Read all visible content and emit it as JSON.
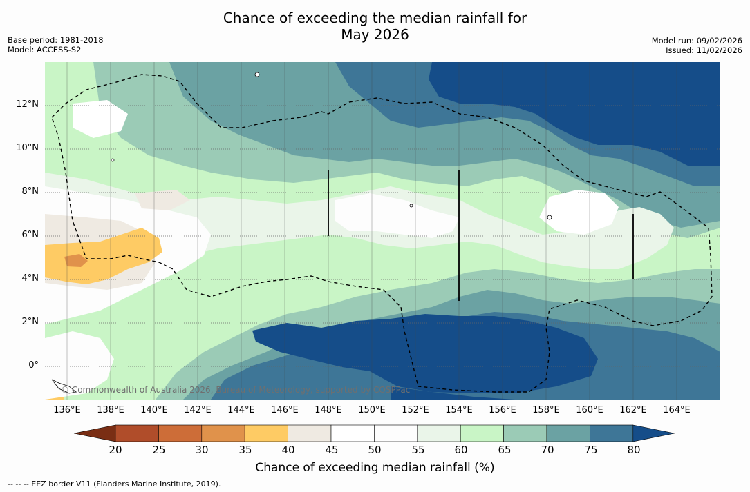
{
  "title": {
    "line1": "Chance of exceeding the median rainfall for",
    "line2": "May 2026"
  },
  "meta": {
    "base_period": "Base period: 1981-2018",
    "model": "Model: ACCESS-S2",
    "model_run": "Model run: 09/02/2026",
    "issued": "Issued: 11/02/2026"
  },
  "map": {
    "lat_labels": [
      "12°N",
      "10°N",
      "8°N",
      "6°N",
      "4°N",
      "2°N",
      "0°"
    ],
    "lon_labels": [
      "136°E",
      "138°E",
      "140°E",
      "142°E",
      "144°E",
      "146°E",
      "148°E",
      "150°E",
      "152°E",
      "154°E",
      "156°E",
      "158°E",
      "160°E",
      "162°E",
      "164°E"
    ],
    "copyright": "© Commonwealth of Australia 2026, Bureau of Meteorology, supported by COSPPac"
  },
  "colorbar": {
    "ticks": [
      "20",
      "25",
      "30",
      "35",
      "40",
      "45",
      "50",
      "55",
      "60",
      "65",
      "70",
      "75",
      "80"
    ],
    "colors": [
      "#7a2e14",
      "#b04d2a",
      "#cd6d38",
      "#e0924b",
      "#fecb64",
      "#efeae2",
      "#ffffff",
      "#fdfdfd",
      "#eaf5e9",
      "#c9f5c6",
      "#9bcbb6",
      "#6ba2a3",
      "#3e7697",
      "#154d89"
    ],
    "title": "Chance of exceeding median rainfall (%)"
  },
  "footnote": "--  --  -- EEZ border V11 (Flanders Marine Institute, 2019)."
}
